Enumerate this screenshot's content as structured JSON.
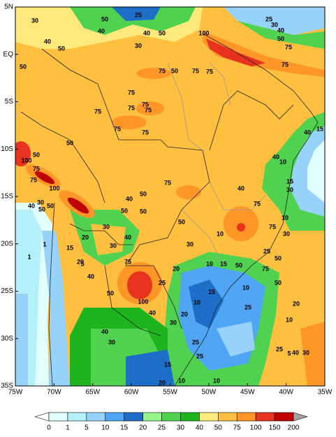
{
  "lat_labels": [
    "5N",
    "EQ",
    "5S",
    "10S",
    "15S",
    "20S",
    "25S",
    "30S",
    "35S"
  ],
  "lon_labels": [
    "75W",
    "70W",
    "65W",
    "60W",
    "55W",
    "50W",
    "45W",
    "40W",
    "35W"
  ],
  "contour_labels": [
    30,
    25,
    50,
    40,
    50,
    30,
    40,
    100,
    25,
    30,
    40,
    50,
    75,
    40,
    50,
    50,
    75,
    50,
    75,
    75,
    75,
    75,
    75,
    75,
    75,
    75,
    75,
    75,
    50,
    50,
    100,
    75,
    75,
    100,
    50,
    50,
    30,
    40,
    40,
    50,
    75,
    50,
    50,
    50,
    30,
    40,
    20,
    30,
    30,
    15,
    20,
    10,
    30,
    1,
    1,
    5,
    40,
    75,
    50,
    100,
    25,
    20,
    10,
    15,
    10,
    15,
    10,
    20,
    30,
    25,
    15,
    10,
    20,
    10,
    25,
    30,
    40,
    40,
    40,
    75,
    75,
    75,
    50,
    25,
    50,
    25,
    20,
    10,
    5,
    10,
    15,
    30,
    40,
    40,
    15,
    10,
    25,
    50,
    40,
    30
  ],
  "colorbar": {
    "labels": [
      0,
      1,
      5,
      10,
      15,
      20,
      25,
      30,
      40,
      50,
      75,
      100,
      150,
      200
    ],
    "colors": [
      "#ffffff",
      "#e1ffff",
      "#b4f0fa",
      "#96d2fa",
      "#50a5f5",
      "#1e6ec8",
      "#96f58c",
      "#50d250",
      "#1eb41e",
      "#ffe87c",
      "#ffc040",
      "#ff9628",
      "#e6321e",
      "#c00000",
      "#f08c8c",
      "#a0a0a0"
    ]
  }
}
